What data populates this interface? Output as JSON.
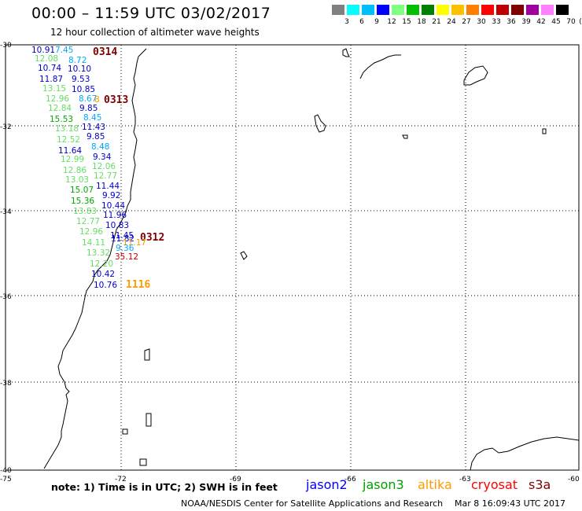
{
  "header": {
    "title": "00:00 – 11:59 UTC 03/02/2017",
    "subtitle": "12 hour collection of altimeter wave heights"
  },
  "colorbar": {
    "unit": "(ft)",
    "labels": [
      "3",
      "6",
      "9",
      "12",
      "15",
      "18",
      "21",
      "24",
      "27",
      "30",
      "33",
      "36",
      "39",
      "42",
      "45",
      "70"
    ],
    "colors": [
      "#808080",
      "#00ffff",
      "#00bfff",
      "#0000ff",
      "#80ff80",
      "#00c000",
      "#008000",
      "#ffff00",
      "#ffc000",
      "#ff8000",
      "#ff0000",
      "#c00000",
      "#800000",
      "#a000a0",
      "#ff80ff",
      "#000000"
    ]
  },
  "map": {
    "lat_labels": [
      "-30",
      "-32",
      "-34",
      "-36",
      "-38",
      "-40"
    ],
    "lon_labels": [
      "-75",
      "-72",
      "-69",
      "-66",
      "-63",
      "-60"
    ],
    "track_labels": [
      {
        "text": "0314",
        "color": "#800000"
      },
      {
        "text": "0313",
        "color": "#800000"
      },
      {
        "text": "0312",
        "color": "#800000"
      },
      {
        "text": "1116",
        "color": "#ff9900"
      }
    ],
    "values": [
      {
        "text": "10.91",
        "color": "#0000cc"
      },
      {
        "text": "7.45",
        "color": "#00aaff"
      },
      {
        "text": "12.08",
        "color": "#66dd66"
      },
      {
        "text": "8.72",
        "color": "#00aaff"
      },
      {
        "text": "10.74",
        "color": "#0000cc"
      },
      {
        "text": "10.10",
        "color": "#0000cc"
      },
      {
        "text": "11.87",
        "color": "#0000cc"
      },
      {
        "text": "9.53",
        "color": "#0000cc"
      },
      {
        "text": "13.15",
        "color": "#66dd66"
      },
      {
        "text": "10.85",
        "color": "#0000cc"
      },
      {
        "text": "12.96",
        "color": "#66dd66"
      },
      {
        "text": "8.67",
        "color": "#00aaff"
      },
      {
        "text": "8",
        "color": "#ff9900"
      },
      {
        "text": "12.84",
        "color": "#66dd66"
      },
      {
        "text": "9.85",
        "color": "#0000cc"
      },
      {
        "text": "15.53",
        "color": "#00aa00"
      },
      {
        "text": "8.45",
        "color": "#00aaff"
      },
      {
        "text": "13.18",
        "color": "#66dd66"
      },
      {
        "text": "11.43",
        "color": "#0000cc"
      },
      {
        "text": "12.52",
        "color": "#66dd66"
      },
      {
        "text": "9.85",
        "color": "#0000cc"
      },
      {
        "text": "11.64",
        "color": "#0000cc"
      },
      {
        "text": "8.48",
        "color": "#00aaff"
      },
      {
        "text": "12.99",
        "color": "#66dd66"
      },
      {
        "text": "9.34",
        "color": "#0000cc"
      },
      {
        "text": "12.86",
        "color": "#66dd66"
      },
      {
        "text": "12.06",
        "color": "#66dd66"
      },
      {
        "text": "13.03",
        "color": "#66dd66"
      },
      {
        "text": "12.77",
        "color": "#66dd66"
      },
      {
        "text": "15.07",
        "color": "#00aa00"
      },
      {
        "text": "11.44",
        "color": "#0000cc"
      },
      {
        "text": "15.36",
        "color": "#00aa00"
      },
      {
        "text": "9.92",
        "color": "#0000cc"
      },
      {
        "text": "13.83",
        "color": "#66dd66"
      },
      {
        "text": "10.44",
        "color": "#0000cc"
      },
      {
        "text": "12.77",
        "color": "#66dd66"
      },
      {
        "text": "11.96",
        "color": "#0000cc"
      },
      {
        "text": "12.96",
        "color": "#66dd66"
      },
      {
        "text": "10.83",
        "color": "#0000cc"
      },
      {
        "text": "11.45",
        "color": "#0000cc"
      },
      {
        "text": "14.11",
        "color": "#66dd66"
      },
      {
        "text": "11.82",
        "color": "#0000cc"
      },
      {
        "text": "11.17",
        "color": "#ff9900"
      },
      {
        "text": "9.36",
        "color": "#00aaff"
      },
      {
        "text": "13.32",
        "color": "#66dd66"
      },
      {
        "text": "35.12",
        "color": "#cc0000"
      },
      {
        "text": "12.20",
        "color": "#66dd66"
      },
      {
        "text": "10.42",
        "color": "#0000cc"
      },
      {
        "text": "10.76",
        "color": "#0000cc"
      }
    ]
  },
  "footer": {
    "note": "note: 1) Time is in UTC; 2) SWH is in feet",
    "satellites": [
      {
        "name": "jason2",
        "color": "#0000ff"
      },
      {
        "name": "jason3",
        "color": "#00a000"
      },
      {
        "name": "altika",
        "color": "#ff9900"
      },
      {
        "name": "cryosat",
        "color": "#ff0000"
      },
      {
        "name": "s3a",
        "color": "#800000"
      }
    ],
    "credit": "NOAA/NESDIS Center for Satellite Applications and Research",
    "stamp": "Mar  8 16:09:43 UTC 2017"
  }
}
